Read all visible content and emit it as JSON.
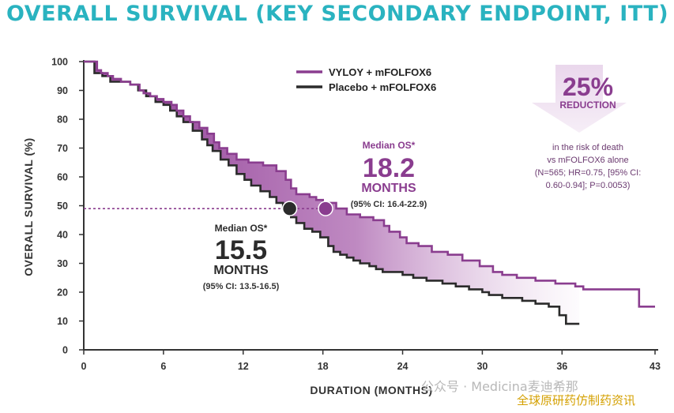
{
  "title": "OVERALL SURVIVAL (KEY SECONDARY ENDPOINT, ITT)",
  "colors": {
    "title": "#2ab3c0",
    "vyloy": "#8a3d8f",
    "placebo": "#2b2b2b",
    "fill": "#9a4d9f",
    "axis": "#333333"
  },
  "chart_data": {
    "type": "line",
    "subtype": "kaplan-meier step curve",
    "xlabel": "DURATION (MONTHS)",
    "ylabel": "OVERALL SURVIVAL (%)",
    "xlim": [
      0,
      43
    ],
    "ylim": [
      0,
      100
    ],
    "x_ticks": [
      "0",
      "6",
      "12",
      "18",
      "24",
      "30",
      "36",
      "43"
    ],
    "y_ticks": [
      "0",
      "10",
      "20",
      "30",
      "40",
      "50",
      "60",
      "70",
      "80",
      "90",
      "100"
    ],
    "grid": false,
    "legend_position": "top-center",
    "series": [
      {
        "name": "VYLOY + mFOLFOX6",
        "color": "#8a3d8f",
        "x": [
          0,
          1,
          1.3,
          1.8,
          2.2,
          2.8,
          3.5,
          4.2,
          4.5,
          5,
          5.5,
          6,
          6.6,
          7,
          7.5,
          8,
          8.7,
          9.3,
          9.8,
          10.2,
          10.8,
          11.5,
          12.4,
          13.5,
          14.5,
          15.2,
          15.6,
          16,
          17,
          17.5,
          18,
          19,
          19.8,
          20.8,
          21.8,
          22.6,
          23,
          23.8,
          24.3,
          25.2,
          26.2,
          27.4,
          28.5,
          29.8,
          30.8,
          31.5,
          32.6,
          34,
          35.5,
          37,
          37.6,
          39,
          40.9,
          41.8,
          43
        ],
        "y": [
          100,
          97,
          96,
          95,
          94,
          93,
          92,
          90,
          89,
          88,
          87,
          86,
          85,
          83,
          81,
          79,
          77,
          75,
          72,
          70,
          68,
          66,
          65,
          64,
          62,
          59,
          56,
          54,
          53,
          52,
          51,
          49,
          47,
          46,
          45,
          43,
          41,
          39,
          37,
          36,
          34,
          33,
          31,
          29,
          27,
          26,
          25,
          24,
          23,
          22,
          21,
          21,
          21,
          15,
          15
        ]
      },
      {
        "name": "Placebo + mFOLFOX6",
        "color": "#2b2b2b",
        "x": [
          0,
          0.8,
          1.4,
          2,
          3.5,
          4.1,
          4.7,
          5.4,
          6,
          6.5,
          7,
          7.5,
          8.2,
          8.9,
          9.3,
          9.7,
          10.3,
          10.9,
          11.5,
          12.1,
          12.6,
          13.3,
          14,
          14.5,
          15,
          15.6,
          16,
          16.6,
          17.2,
          17.8,
          18.4,
          18.8,
          19.3,
          19.8,
          20.3,
          20.8,
          21.5,
          22,
          22.5,
          24,
          24.8,
          25.8,
          27,
          28,
          29,
          30,
          30.5,
          31.5,
          33,
          34,
          35,
          35.8,
          36.3,
          37.3
        ],
        "y": [
          100,
          96,
          95,
          93,
          92,
          90,
          88,
          86,
          85,
          83,
          81,
          79,
          76,
          73,
          71,
          69,
          66,
          64,
          61,
          59,
          57,
          55,
          53,
          51,
          49,
          46,
          44,
          42,
          41,
          39,
          36,
          34,
          33,
          32,
          31,
          30,
          29,
          28,
          27,
          26,
          25,
          24,
          23,
          22,
          21,
          20,
          19,
          18,
          17,
          16,
          15,
          12,
          9,
          9
        ]
      }
    ],
    "median_line_y": 49,
    "medians": [
      {
        "series": "VYLOY + mFOLFOX6",
        "x": 18.2,
        "y": 49,
        "label": "Median OS*",
        "value": "18.2",
        "unit": "MONTHS",
        "ci": "(95% CI: 16.4-22.9)"
      },
      {
        "series": "Placebo + mFOLFOX6",
        "x": 15.5,
        "y": 49,
        "label": "Median OS*",
        "value": "15.5",
        "unit": "MONTHS",
        "ci": "(95% CI: 13.5-16.5)"
      }
    ],
    "annotation": {
      "percent": "25%",
      "word": "REDUCTION",
      "lines": [
        "in the risk of death",
        "vs mFOLFOX6 alone",
        "(N=565; HR=0.75, [95% CI:",
        "0.60-0.94]; P=0.0053)"
      ]
    }
  },
  "watermarks": {
    "wechat": "公众号 · Medicina麦迪希那",
    "site": "全球原研药仿制药资讯"
  }
}
